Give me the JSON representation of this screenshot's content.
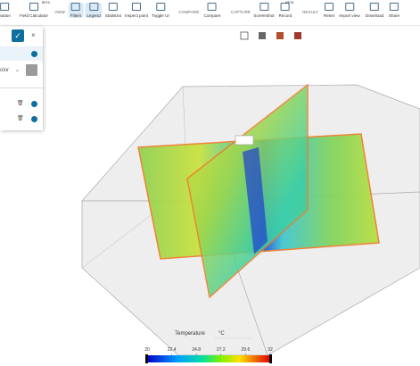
{
  "toolbar": {
    "groups": [
      {
        "buttons": [
          {
            "label": "mation"
          },
          {
            "label": "Field Calculator",
            "badge": "BETA"
          }
        ]
      },
      {
        "heading": "VIEW",
        "buttons": [
          {
            "label": "Filters"
          },
          {
            "label": "Legend"
          },
          {
            "label": "Statistics"
          },
          {
            "label": "Inspect point"
          },
          {
            "label": "Toggle UI"
          }
        ]
      },
      {
        "heading": "COMPARE",
        "buttons": [
          {
            "label": "Compare"
          }
        ]
      },
      {
        "heading": "CAPTURE",
        "buttons": [
          {
            "label": "Screenshot"
          },
          {
            "label": "Record",
            "badge": "BETA"
          }
        ]
      },
      {
        "heading": "RESULT",
        "buttons": [
          {
            "label": "Reset"
          },
          {
            "label": "Import view"
          },
          {
            "label": "Download"
          },
          {
            "label": "Share"
          }
        ]
      }
    ]
  },
  "panel": {
    "color_label": "olor"
  },
  "legend": {
    "field": "Temperature",
    "unit": "°C",
    "ticks": [
      20,
      22.4,
      24.8,
      27.2,
      29.6,
      32
    ]
  }
}
